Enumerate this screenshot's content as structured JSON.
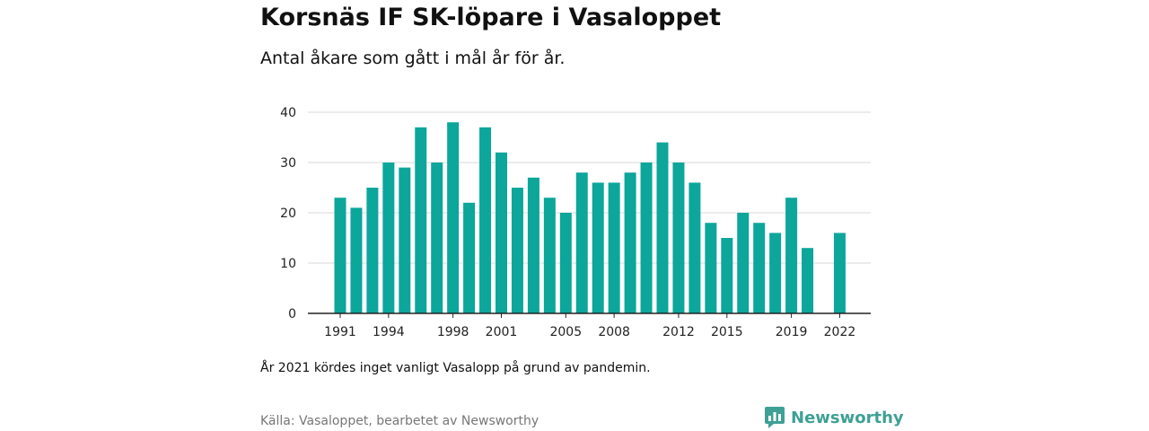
{
  "header": {
    "title": "Korsnäs IF SK-löpare i Vasaloppet",
    "subtitle": "Antal åkare som gått i mål år för år."
  },
  "footer": {
    "note": "År 2021 kördes inget vanligt Vasalopp på grund av pandemin.",
    "source": "Källa: Vasaloppet, bearbetet av Newsworthy",
    "brand": "Newsworthy"
  },
  "colors": {
    "bar": "#0ca69b",
    "grid": "#d9d9d9",
    "axis": "#222222",
    "brand": "#3fa095"
  },
  "icons": {
    "brand_logo": "newsworthy-logo-icon"
  },
  "chart_data": {
    "type": "bar",
    "title": "Korsnäs IF SK-löpare i Vasaloppet",
    "subtitle": "Antal åkare som gått i mål år för år.",
    "categories": [
      1991,
      1992,
      1993,
      1994,
      1995,
      1996,
      1997,
      1998,
      1999,
      2000,
      2001,
      2002,
      2003,
      2004,
      2005,
      2006,
      2007,
      2008,
      2009,
      2010,
      2011,
      2012,
      2013,
      2014,
      2015,
      2016,
      2017,
      2018,
      2019,
      2020,
      2021,
      2022
    ],
    "values": [
      23,
      21,
      25,
      30,
      29,
      37,
      30,
      38,
      22,
      37,
      32,
      25,
      27,
      23,
      20,
      28,
      26,
      26,
      28,
      30,
      34,
      30,
      26,
      18,
      15,
      20,
      18,
      16,
      23,
      13,
      null,
      16
    ],
    "x_tick_labels": [
      "1991",
      "1994",
      "1998",
      "2001",
      "2005",
      "2008",
      "2012",
      "2015",
      "2019",
      "2022"
    ],
    "y_ticks": [
      0,
      10,
      20,
      30,
      40
    ],
    "ylim": [
      0,
      40
    ],
    "xlabel": "",
    "ylabel": "",
    "grid": true,
    "legend": "none"
  }
}
